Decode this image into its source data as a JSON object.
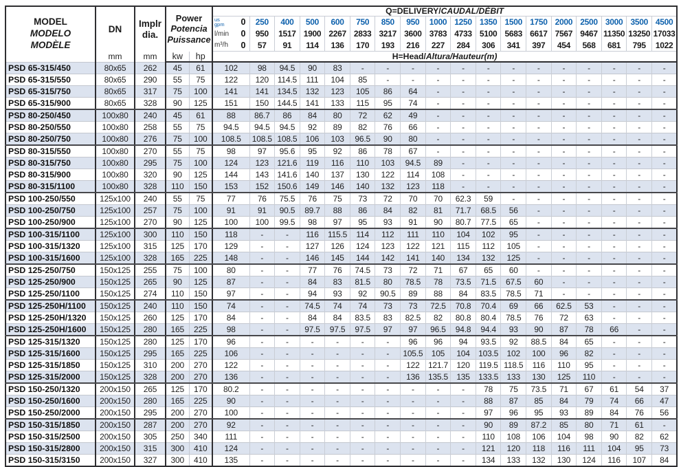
{
  "colors": {
    "accent_blue": "#0f62ad",
    "row_shade": "#dce3ef",
    "border_dark": "#2e2e31"
  },
  "header": {
    "model": {
      "line1": "MODEL",
      "line2": "MODELO",
      "line3": "MODÈLE"
    },
    "dn": {
      "label": "DN",
      "unit": "mm"
    },
    "impeller": {
      "line1": "Implr",
      "line2": "dia.",
      "unit": "mm"
    },
    "power": {
      "line1": "Power",
      "line2": "Potencia",
      "line3": "Puissance",
      "kw": "kw",
      "hp": "hp"
    },
    "q_title": {
      "p1": "Q=DELIVERY/",
      "p2": "CAUDAL/DÉBIT"
    },
    "h_title": {
      "p1": "H=Head/",
      "p2": "Altura/Hauteur",
      "p3": "(m)"
    },
    "flow": {
      "gpm": {
        "label_top": "us",
        "label_bottom": "gpm",
        "zero": "0",
        "values": [
          "250",
          "400",
          "500",
          "600",
          "750",
          "850",
          "950",
          "1000",
          "1250",
          "1350",
          "1500",
          "1750",
          "2000",
          "2500",
          "3000",
          "3500",
          "4500"
        ]
      },
      "lmin": {
        "label": "l/min",
        "zero": "0",
        "values": [
          "950",
          "1517",
          "1900",
          "2267",
          "2833",
          "3217",
          "3600",
          "3783",
          "4733",
          "5100",
          "5683",
          "6617",
          "7567",
          "9467",
          "11350",
          "13250",
          "17033"
        ]
      },
      "m3h": {
        "label": "m³/h",
        "zero": "0",
        "values": [
          "57",
          "91",
          "114",
          "136",
          "170",
          "193",
          "216",
          "227",
          "284",
          "306",
          "341",
          "397",
          "454",
          "568",
          "681",
          "795",
          "1022"
        ]
      }
    }
  },
  "rows": [
    {
      "model": "PSD 65-315/450",
      "dn": "80x65",
      "impeller": "262",
      "kw": "45",
      "hp": "61",
      "heads": [
        "102",
        "98",
        "94.5",
        "90",
        "83",
        "-",
        "-",
        "-",
        "-",
        "-",
        "-",
        "-",
        "-",
        "-",
        "-",
        "-",
        "-",
        "-"
      ],
      "group_end": false
    },
    {
      "model": "PSD 65-315/550",
      "dn": "80x65",
      "impeller": "290",
      "kw": "55",
      "hp": "75",
      "heads": [
        "122",
        "120",
        "114.5",
        "111",
        "104",
        "85",
        "-",
        "-",
        "-",
        "-",
        "-",
        "-",
        "-",
        "-",
        "-",
        "-",
        "-",
        "-"
      ],
      "group_end": false
    },
    {
      "model": "PSD 65-315/750",
      "dn": "80x65",
      "impeller": "317",
      "kw": "75",
      "hp": "100",
      "heads": [
        "141",
        "141",
        "134.5",
        "132",
        "123",
        "105",
        "86",
        "64",
        "-",
        "-",
        "-",
        "-",
        "-",
        "-",
        "-",
        "-",
        "-",
        "-"
      ],
      "group_end": false
    },
    {
      "model": "PSD 65-315/900",
      "dn": "80x65",
      "impeller": "328",
      "kw": "90",
      "hp": "125",
      "heads": [
        "151",
        "150",
        "144.5",
        "141",
        "133",
        "115",
        "95",
        "74",
        "-",
        "-",
        "-",
        "-",
        "-",
        "-",
        "-",
        "-",
        "-",
        "-"
      ],
      "group_end": true
    },
    {
      "model": "PSD 80-250/450",
      "dn": "100x80",
      "impeller": "240",
      "kw": "45",
      "hp": "61",
      "heads": [
        "88",
        "86.7",
        "86",
        "84",
        "80",
        "72",
        "62",
        "49",
        "-",
        "-",
        "-",
        "-",
        "-",
        "-",
        "-",
        "-",
        "-",
        "-"
      ],
      "group_end": false
    },
    {
      "model": "PSD 80-250/550",
      "dn": "100x80",
      "impeller": "258",
      "kw": "55",
      "hp": "75",
      "heads": [
        "94.5",
        "94.5",
        "94.5",
        "92",
        "89",
        "82",
        "76",
        "66",
        "-",
        "-",
        "-",
        "-",
        "-",
        "-",
        "-",
        "-",
        "-",
        "-"
      ],
      "group_end": false
    },
    {
      "model": "PSD 80-250/750",
      "dn": "100x80",
      "impeller": "276",
      "kw": "75",
      "hp": "100",
      "heads": [
        "108.5",
        "108.5",
        "108.5",
        "106",
        "103",
        "96.5",
        "90",
        "80",
        "-",
        "-",
        "-",
        "-",
        "-",
        "-",
        "-",
        "-",
        "-",
        "-"
      ],
      "group_end": true
    },
    {
      "model": "PSD 80-315/550",
      "dn": "100x80",
      "impeller": "270",
      "kw": "55",
      "hp": "75",
      "heads": [
        "98",
        "97",
        "95.6",
        "95",
        "92",
        "86",
        "78",
        "67",
        "-",
        "-",
        "-",
        "-",
        "-",
        "-",
        "-",
        "-",
        "-",
        "-"
      ],
      "group_end": false
    },
    {
      "model": "PSD 80-315/750",
      "dn": "100x80",
      "impeller": "295",
      "kw": "75",
      "hp": "100",
      "heads": [
        "124",
        "123",
        "121.6",
        "119",
        "116",
        "110",
        "103",
        "94.5",
        "89",
        "-",
        "-",
        "-",
        "-",
        "-",
        "-",
        "-",
        "-",
        "-"
      ],
      "group_end": false
    },
    {
      "model": "PSD 80-315/900",
      "dn": "100x80",
      "impeller": "320",
      "kw": "90",
      "hp": "125",
      "heads": [
        "144",
        "143",
        "141.6",
        "140",
        "137",
        "130",
        "122",
        "114",
        "108",
        "-",
        "-",
        "-",
        "-",
        "-",
        "-",
        "-",
        "-",
        "-"
      ],
      "group_end": false
    },
    {
      "model": "PSD 80-315/1100",
      "dn": "100x80",
      "impeller": "328",
      "kw": "110",
      "hp": "150",
      "heads": [
        "153",
        "152",
        "150.6",
        "149",
        "146",
        "140",
        "132",
        "123",
        "118",
        "-",
        "-",
        "-",
        "-",
        "-",
        "-",
        "-",
        "-",
        "-"
      ],
      "group_end": true
    },
    {
      "model": "PSD 100-250/550",
      "dn": "125x100",
      "impeller": "240",
      "kw": "55",
      "hp": "75",
      "heads": [
        "77",
        "76",
        "75.5",
        "76",
        "75",
        "73",
        "72",
        "70",
        "70",
        "62.3",
        "59",
        "-",
        "-",
        "-",
        "-",
        "-",
        "-",
        "-"
      ],
      "group_end": false
    },
    {
      "model": "PSD 100-250/750",
      "dn": "125x100",
      "impeller": "257",
      "kw": "75",
      "hp": "100",
      "heads": [
        "91",
        "91",
        "90.5",
        "89.7",
        "88",
        "86",
        "84",
        "82",
        "81",
        "71.7",
        "68.5",
        "56",
        "-",
        "-",
        "-",
        "-",
        "-",
        "-"
      ],
      "group_end": false
    },
    {
      "model": "PSD 100-250/900",
      "dn": "125x100",
      "impeller": "270",
      "kw": "90",
      "hp": "125",
      "heads": [
        "100",
        "100",
        "99.5",
        "98",
        "97",
        "95",
        "93",
        "91",
        "90",
        "80.7",
        "77.5",
        "65",
        "-",
        "-",
        "-",
        "-",
        "-",
        "-"
      ],
      "group_end": true
    },
    {
      "model": "PSD 100-315/1100",
      "dn": "125x100",
      "impeller": "300",
      "kw": "110",
      "hp": "150",
      "heads": [
        "118",
        "-",
        "-",
        "116",
        "115.5",
        "114",
        "112",
        "111",
        "110",
        "104",
        "102",
        "95",
        "-",
        "-",
        "-",
        "-",
        "-",
        "-"
      ],
      "group_end": false
    },
    {
      "model": "PSD 100-315/1320",
      "dn": "125x100",
      "impeller": "315",
      "kw": "125",
      "hp": "170",
      "heads": [
        "129",
        "-",
        "-",
        "127",
        "126",
        "124",
        "123",
        "122",
        "121",
        "115",
        "112",
        "105",
        "-",
        "-",
        "-",
        "-",
        "-",
        "-"
      ],
      "group_end": false
    },
    {
      "model": "PSD 100-315/1600",
      "dn": "125x100",
      "impeller": "328",
      "kw": "165",
      "hp": "225",
      "heads": [
        "148",
        "-",
        "-",
        "146",
        "145",
        "144",
        "142",
        "141",
        "140",
        "134",
        "132",
        "125",
        "-",
        "-",
        "-",
        "-",
        "-",
        "-"
      ],
      "group_end": true
    },
    {
      "model": "PSD 125-250/750",
      "dn": "150x125",
      "impeller": "255",
      "kw": "75",
      "hp": "100",
      "heads": [
        "80",
        "-",
        "-",
        "77",
        "76",
        "74.5",
        "73",
        "72",
        "71",
        "67",
        "65",
        "60",
        "-",
        "-",
        "-",
        "-",
        "-",
        "-"
      ],
      "group_end": false
    },
    {
      "model": "PSD 125-250/900",
      "dn": "150x125",
      "impeller": "265",
      "kw": "90",
      "hp": "125",
      "heads": [
        "87",
        "-",
        "-",
        "84",
        "83",
        "81.5",
        "80",
        "78.5",
        "78",
        "73.5",
        "71.5",
        "67.5",
        "60",
        "-",
        "-",
        "-",
        "-",
        "-"
      ],
      "group_end": false
    },
    {
      "model": "PSD 125-250/1100",
      "dn": "150x125",
      "impeller": "274",
      "kw": "110",
      "hp": "150",
      "heads": [
        "97",
        "-",
        "-",
        "94",
        "93",
        "92",
        "90.5",
        "89",
        "88",
        "84",
        "83.5",
        "78.5",
        "71",
        "-",
        "-",
        "-",
        "-",
        "-"
      ],
      "group_end": true
    },
    {
      "model": "PSD 125-250H/1100",
      "dn": "150x125",
      "impeller": "240",
      "kw": "110",
      "hp": "150",
      "heads": [
        "74",
        "-",
        "-",
        "74.5",
        "74",
        "74",
        "73",
        "73",
        "72.5",
        "70.8",
        "70.4",
        "69",
        "66",
        "62.5",
        "53",
        "-",
        "-",
        "-"
      ],
      "group_end": false
    },
    {
      "model": "PSD 125-250H/1320",
      "dn": "150x125",
      "impeller": "260",
      "kw": "125",
      "hp": "170",
      "heads": [
        "84",
        "-",
        "-",
        "84",
        "84",
        "83.5",
        "83",
        "82.5",
        "82",
        "80.8",
        "80.4",
        "78.5",
        "76",
        "72",
        "63",
        "-",
        "-",
        "-"
      ],
      "group_end": false
    },
    {
      "model": "PSD 125-250H/1600",
      "dn": "150x125",
      "impeller": "280",
      "kw": "165",
      "hp": "225",
      "heads": [
        "98",
        "-",
        "-",
        "97.5",
        "97.5",
        "97.5",
        "97",
        "97",
        "96.5",
        "94.8",
        "94.4",
        "93",
        "90",
        "87",
        "78",
        "66",
        "-",
        "-"
      ],
      "group_end": true
    },
    {
      "model": "PSD 125-315/1320",
      "dn": "150x125",
      "impeller": "280",
      "kw": "125",
      "hp": "170",
      "heads": [
        "96",
        "-",
        "-",
        "-",
        "-",
        "-",
        "-",
        "96",
        "96",
        "94",
        "93.5",
        "92",
        "88.5",
        "84",
        "65",
        "-",
        "-",
        "-"
      ],
      "group_end": false
    },
    {
      "model": "PSD 125-315/1600",
      "dn": "150x125",
      "impeller": "295",
      "kw": "165",
      "hp": "225",
      "heads": [
        "106",
        "-",
        "-",
        "-",
        "-",
        "-",
        "-",
        "105.5",
        "105",
        "104",
        "103.5",
        "102",
        "100",
        "96",
        "82",
        "-",
        "-",
        "-"
      ],
      "group_end": false
    },
    {
      "model": "PSD 125-315/1850",
      "dn": "150x125",
      "impeller": "310",
      "kw": "200",
      "hp": "270",
      "heads": [
        "122",
        "-",
        "-",
        "-",
        "-",
        "-",
        "-",
        "122",
        "121.7",
        "120",
        "119.5",
        "118.5",
        "116",
        "110",
        "95",
        "-",
        "-",
        "-"
      ],
      "group_end": false
    },
    {
      "model": "PSD 125-315/2000",
      "dn": "150x125",
      "impeller": "328",
      "kw": "200",
      "hp": "270",
      "heads": [
        "136",
        "-",
        "-",
        "-",
        "-",
        "-",
        "-",
        "136",
        "135.5",
        "135",
        "133.5",
        "133",
        "130",
        "125",
        "110",
        "-",
        "-",
        "-"
      ],
      "group_end": true
    },
    {
      "model": "PSD 150-250/1320",
      "dn": "200x150",
      "impeller": "265",
      "kw": "125",
      "hp": "170",
      "heads": [
        "80.2",
        "-",
        "-",
        "-",
        "-",
        "-",
        "-",
        "-",
        "-",
        "-",
        "78",
        "75",
        "73.5",
        "71",
        "67",
        "61",
        "54",
        "37"
      ],
      "group_end": false
    },
    {
      "model": "PSD 150-250/1600",
      "dn": "200x150",
      "impeller": "280",
      "kw": "165",
      "hp": "225",
      "heads": [
        "90",
        "-",
        "-",
        "-",
        "-",
        "-",
        "-",
        "-",
        "-",
        "-",
        "88",
        "87",
        "85",
        "84",
        "79",
        "74",
        "66",
        "47"
      ],
      "group_end": false
    },
    {
      "model": "PSD 150-250/2000",
      "dn": "200x150",
      "impeller": "295",
      "kw": "200",
      "hp": "270",
      "heads": [
        "100",
        "-",
        "-",
        "-",
        "-",
        "-",
        "-",
        "-",
        "-",
        "-",
        "97",
        "96",
        "95",
        "93",
        "89",
        "84",
        "76",
        "56"
      ],
      "group_end": true
    },
    {
      "model": "PSD 150-315/1850",
      "dn": "200x150",
      "impeller": "287",
      "kw": "200",
      "hp": "270",
      "heads": [
        "92",
        "-",
        "-",
        "-",
        "-",
        "-",
        "-",
        "-",
        "-",
        "-",
        "90",
        "89",
        "87.2",
        "85",
        "80",
        "71",
        "61",
        "-"
      ],
      "group_end": false
    },
    {
      "model": "PSD 150-315/2500",
      "dn": "200x150",
      "impeller": "305",
      "kw": "250",
      "hp": "340",
      "heads": [
        "111",
        "-",
        "-",
        "-",
        "-",
        "-",
        "-",
        "-",
        "-",
        "-",
        "110",
        "108",
        "106",
        "104",
        "98",
        "90",
        "82",
        "62"
      ],
      "group_end": false
    },
    {
      "model": "PSD 150-315/2800",
      "dn": "200x150",
      "impeller": "315",
      "kw": "300",
      "hp": "410",
      "heads": [
        "124",
        "-",
        "-",
        "-",
        "-",
        "-",
        "-",
        "-",
        "-",
        "-",
        "121",
        "120",
        "118",
        "116",
        "111",
        "104",
        "95",
        "73"
      ],
      "group_end": false
    },
    {
      "model": "PSD 150-315/3150",
      "dn": "200x150",
      "impeller": "327",
      "kw": "300",
      "hp": "410",
      "heads": [
        "135",
        "-",
        "-",
        "-",
        "-",
        "-",
        "-",
        "-",
        "-",
        "-",
        "134",
        "133",
        "132",
        "130",
        "124",
        "116",
        "107",
        "84"
      ],
      "group_end": false
    }
  ]
}
